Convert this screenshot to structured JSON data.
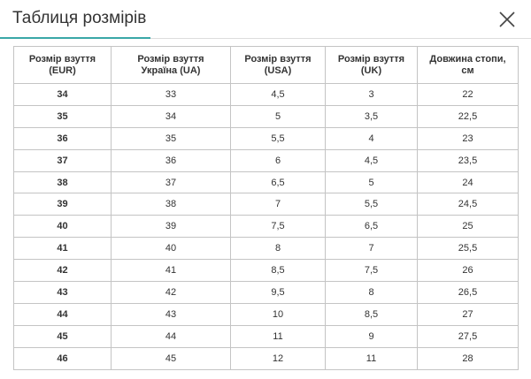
{
  "header": {
    "title": "Таблиця розмірів"
  },
  "table": {
    "columns": [
      [
        "Розмір взуття",
        "(EUR)"
      ],
      [
        "Розмір взуття",
        "Україна (UA)"
      ],
      [
        "Розмір взуття",
        "(USA)"
      ],
      [
        "Розмір взуття",
        "(UK)"
      ],
      [
        "Довжина стопи,",
        "см"
      ]
    ],
    "rows": [
      [
        "34",
        "33",
        "4,5",
        "3",
        "22"
      ],
      [
        "35",
        "34",
        "5",
        "3,5",
        "22,5"
      ],
      [
        "36",
        "35",
        "5,5",
        "4",
        "23"
      ],
      [
        "37",
        "36",
        "6",
        "4,5",
        "23,5"
      ],
      [
        "38",
        "37",
        "6,5",
        "5",
        "24"
      ],
      [
        "39",
        "38",
        "7",
        "5,5",
        "24,5"
      ],
      [
        "40",
        "39",
        "7,5",
        "6,5",
        "25"
      ],
      [
        "41",
        "40",
        "8",
        "7",
        "25,5"
      ],
      [
        "42",
        "41",
        "8,5",
        "7,5",
        "26"
      ],
      [
        "43",
        "42",
        "9,5",
        "8",
        "26,5"
      ],
      [
        "44",
        "43",
        "10",
        "8,5",
        "27"
      ],
      [
        "45",
        "44",
        "11",
        "9",
        "27,5"
      ],
      [
        "46",
        "45",
        "12",
        "11",
        "28"
      ]
    ]
  }
}
